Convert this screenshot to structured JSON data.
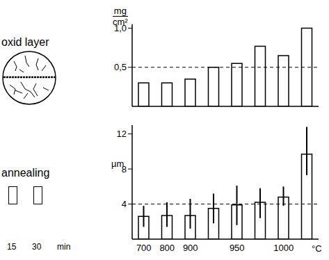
{
  "chart_data": [
    {
      "type": "bar",
      "ylabel": [
        "mg",
        "cm²"
      ],
      "categories": [
        "700",
        "800",
        "900",
        null,
        "950",
        null,
        "1000",
        null
      ],
      "values": [
        0.3,
        0.3,
        0.35,
        0.5,
        0.55,
        0.77,
        0.65,
        1.0
      ],
      "color": "#ffffff",
      "ylim": [
        0,
        1.05
      ],
      "yticks": [
        {
          "value": 0.5,
          "label": "0,5"
        },
        {
          "value": 1,
          "label": "1,0"
        }
      ],
      "reference_line": 0.5,
      "grid": false,
      "tick_labels": "y"
    },
    {
      "type": "bar",
      "ylabel": "µm",
      "xlabel": "°C",
      "categories": [
        "700",
        "800",
        "900",
        null,
        "950",
        null,
        "1000",
        null
      ],
      "values": [
        2.6,
        2.7,
        2.7,
        3.5,
        3.9,
        4.2,
        4.8,
        9.7
      ],
      "error_bars": [
        [
          1.4,
          3.8
        ],
        [
          1.4,
          4.2
        ],
        [
          1.2,
          4.6
        ],
        [
          1.8,
          5.2
        ],
        [
          1.6,
          6.1
        ],
        [
          2.4,
          5.8
        ],
        [
          3.8,
          6.0
        ],
        [
          7.3,
          12.8
        ]
      ],
      "color": "#ffffff",
      "ylim": [
        0,
        13
      ],
      "yticks": [
        4,
        8,
        12
      ],
      "reference_line": 4,
      "grid": false
    }
  ],
  "legend_panel": {
    "title": "oxid layer",
    "annealing": "annealing",
    "durations": [
      "15",
      "30"
    ],
    "unit": "min"
  }
}
